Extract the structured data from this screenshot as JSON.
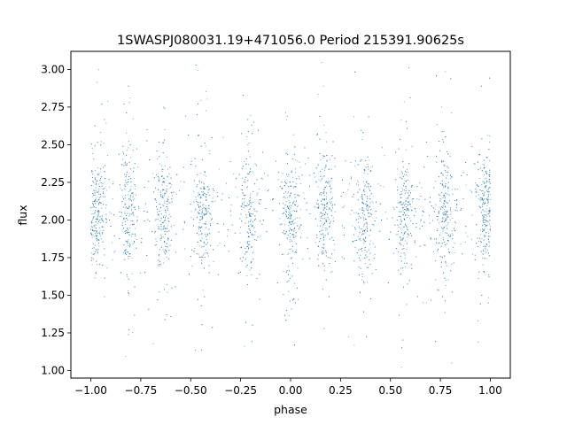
{
  "chart_data": {
    "type": "scatter",
    "title": "1SWASPJ080031.19+471056.0 Period 215391.90625s",
    "xlabel": "phase",
    "ylabel": "flux",
    "xlim": [
      -1.1,
      1.1
    ],
    "ylim": [
      0.95,
      3.12
    ],
    "xticks": [
      -1.0,
      -0.75,
      -0.5,
      -0.25,
      0.0,
      0.25,
      0.5,
      0.75,
      1.0
    ],
    "xtick_labels": [
      "−1.00",
      "−0.75",
      "−0.50",
      "−0.25",
      "0.00",
      "0.25",
      "0.50",
      "0.75",
      "1.00"
    ],
    "yticks": [
      1.0,
      1.25,
      1.5,
      1.75,
      2.0,
      2.25,
      2.5,
      2.75,
      3.0
    ],
    "ytick_labels": [
      "1.00",
      "1.25",
      "1.50",
      "1.75",
      "2.00",
      "2.25",
      "2.50",
      "2.75",
      "3.00"
    ],
    "grid": false,
    "series": [
      {
        "color": "#1f77b4",
        "marker": "dot",
        "phase_range": [
          -1.0,
          1.0
        ],
        "flux_center": 2.05,
        "flux_range": [
          1.02,
          3.05
        ],
        "band_centers": [
          -0.97,
          -0.81,
          -0.64,
          -0.44,
          -0.21,
          0.0,
          0.17,
          0.37,
          0.57,
          0.77,
          0.97
        ]
      }
    ]
  }
}
